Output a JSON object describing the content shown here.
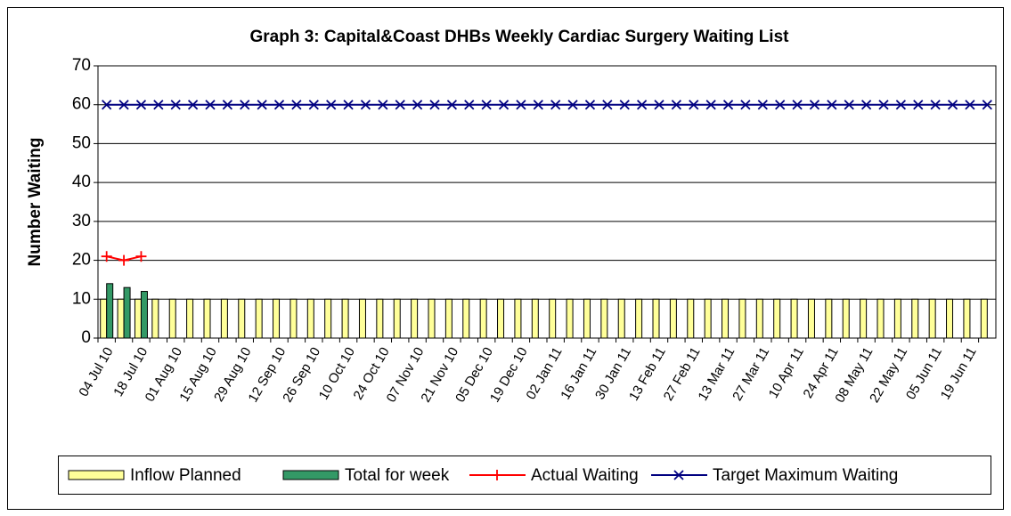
{
  "chart_data": {
    "type": "bar_line",
    "title": "Graph 3: Capital&Coast DHBs Weekly Cardiac Surgery Waiting List",
    "y_label": "Number Waiting",
    "categories": [
      "04 Jul 10",
      null,
      "18 Jul 10",
      null,
      "01 Aug 10",
      null,
      "15 Aug 10",
      null,
      "29 Aug 10",
      null,
      "12 Sep 10",
      null,
      "26 Sep 10",
      null,
      "10 Oct 10",
      null,
      "24 Oct 10",
      null,
      "07 Nov 10",
      null,
      "21 Nov 10",
      null,
      "05 Dec 10",
      null,
      "19 Dec 10",
      null,
      "02 Jan 11",
      null,
      "16 Jan 11",
      null,
      "30 Jan 11",
      null,
      "13 Feb 11",
      null,
      "27 Feb 11",
      null,
      "13 Mar 11",
      null,
      "27 Mar 11",
      null,
      "10 Apr 11",
      null,
      "24 Apr 11",
      null,
      "08 May 11",
      null,
      "22 May 11",
      null,
      "05 Jun 11",
      null,
      "19 Jun 11",
      null
    ],
    "series": [
      {
        "name": "Inflow Planned",
        "kind": "bar",
        "color": "#ffff99",
        "values": [
          10,
          10,
          10,
          10,
          10,
          10,
          10,
          10,
          10,
          10,
          10,
          10,
          10,
          10,
          10,
          10,
          10,
          10,
          10,
          10,
          10,
          10,
          10,
          10,
          10,
          10,
          10,
          10,
          10,
          10,
          10,
          10,
          10,
          10,
          10,
          10,
          10,
          10,
          10,
          10,
          10,
          10,
          10,
          10,
          10,
          10,
          10,
          10,
          10,
          10,
          10,
          10
        ]
      },
      {
        "name": "Total for week",
        "kind": "bar",
        "color": "#339966",
        "values": [
          14,
          13,
          12,
          null,
          null,
          null,
          null,
          null,
          null,
          null,
          null,
          null,
          null,
          null,
          null,
          null,
          null,
          null,
          null,
          null,
          null,
          null,
          null,
          null,
          null,
          null,
          null,
          null,
          null,
          null,
          null,
          null,
          null,
          null,
          null,
          null,
          null,
          null,
          null,
          null,
          null,
          null,
          null,
          null,
          null,
          null,
          null,
          null,
          null,
          null,
          null,
          null
        ]
      },
      {
        "name": "Actual Waiting",
        "kind": "line",
        "marker": "plus",
        "color": "#ff0000",
        "values": [
          21,
          20,
          21,
          null,
          null,
          null,
          null,
          null,
          null,
          null,
          null,
          null,
          null,
          null,
          null,
          null,
          null,
          null,
          null,
          null,
          null,
          null,
          null,
          null,
          null,
          null,
          null,
          null,
          null,
          null,
          null,
          null,
          null,
          null,
          null,
          null,
          null,
          null,
          null,
          null,
          null,
          null,
          null,
          null,
          null,
          null,
          null,
          null,
          null,
          null,
          null,
          null
        ]
      },
      {
        "name": "Target Maximum Waiting",
        "kind": "line",
        "marker": "cross",
        "color": "#000080",
        "values": [
          60,
          60,
          60,
          60,
          60,
          60,
          60,
          60,
          60,
          60,
          60,
          60,
          60,
          60,
          60,
          60,
          60,
          60,
          60,
          60,
          60,
          60,
          60,
          60,
          60,
          60,
          60,
          60,
          60,
          60,
          60,
          60,
          60,
          60,
          60,
          60,
          60,
          60,
          60,
          60,
          60,
          60,
          60,
          60,
          60,
          60,
          60,
          60,
          60,
          60,
          60,
          60
        ]
      }
    ],
    "ylim": [
      0,
      70
    ],
    "yticks": [
      0,
      10,
      20,
      30,
      40,
      50,
      60,
      70
    ],
    "grid": true,
    "legend": "bottom"
  }
}
